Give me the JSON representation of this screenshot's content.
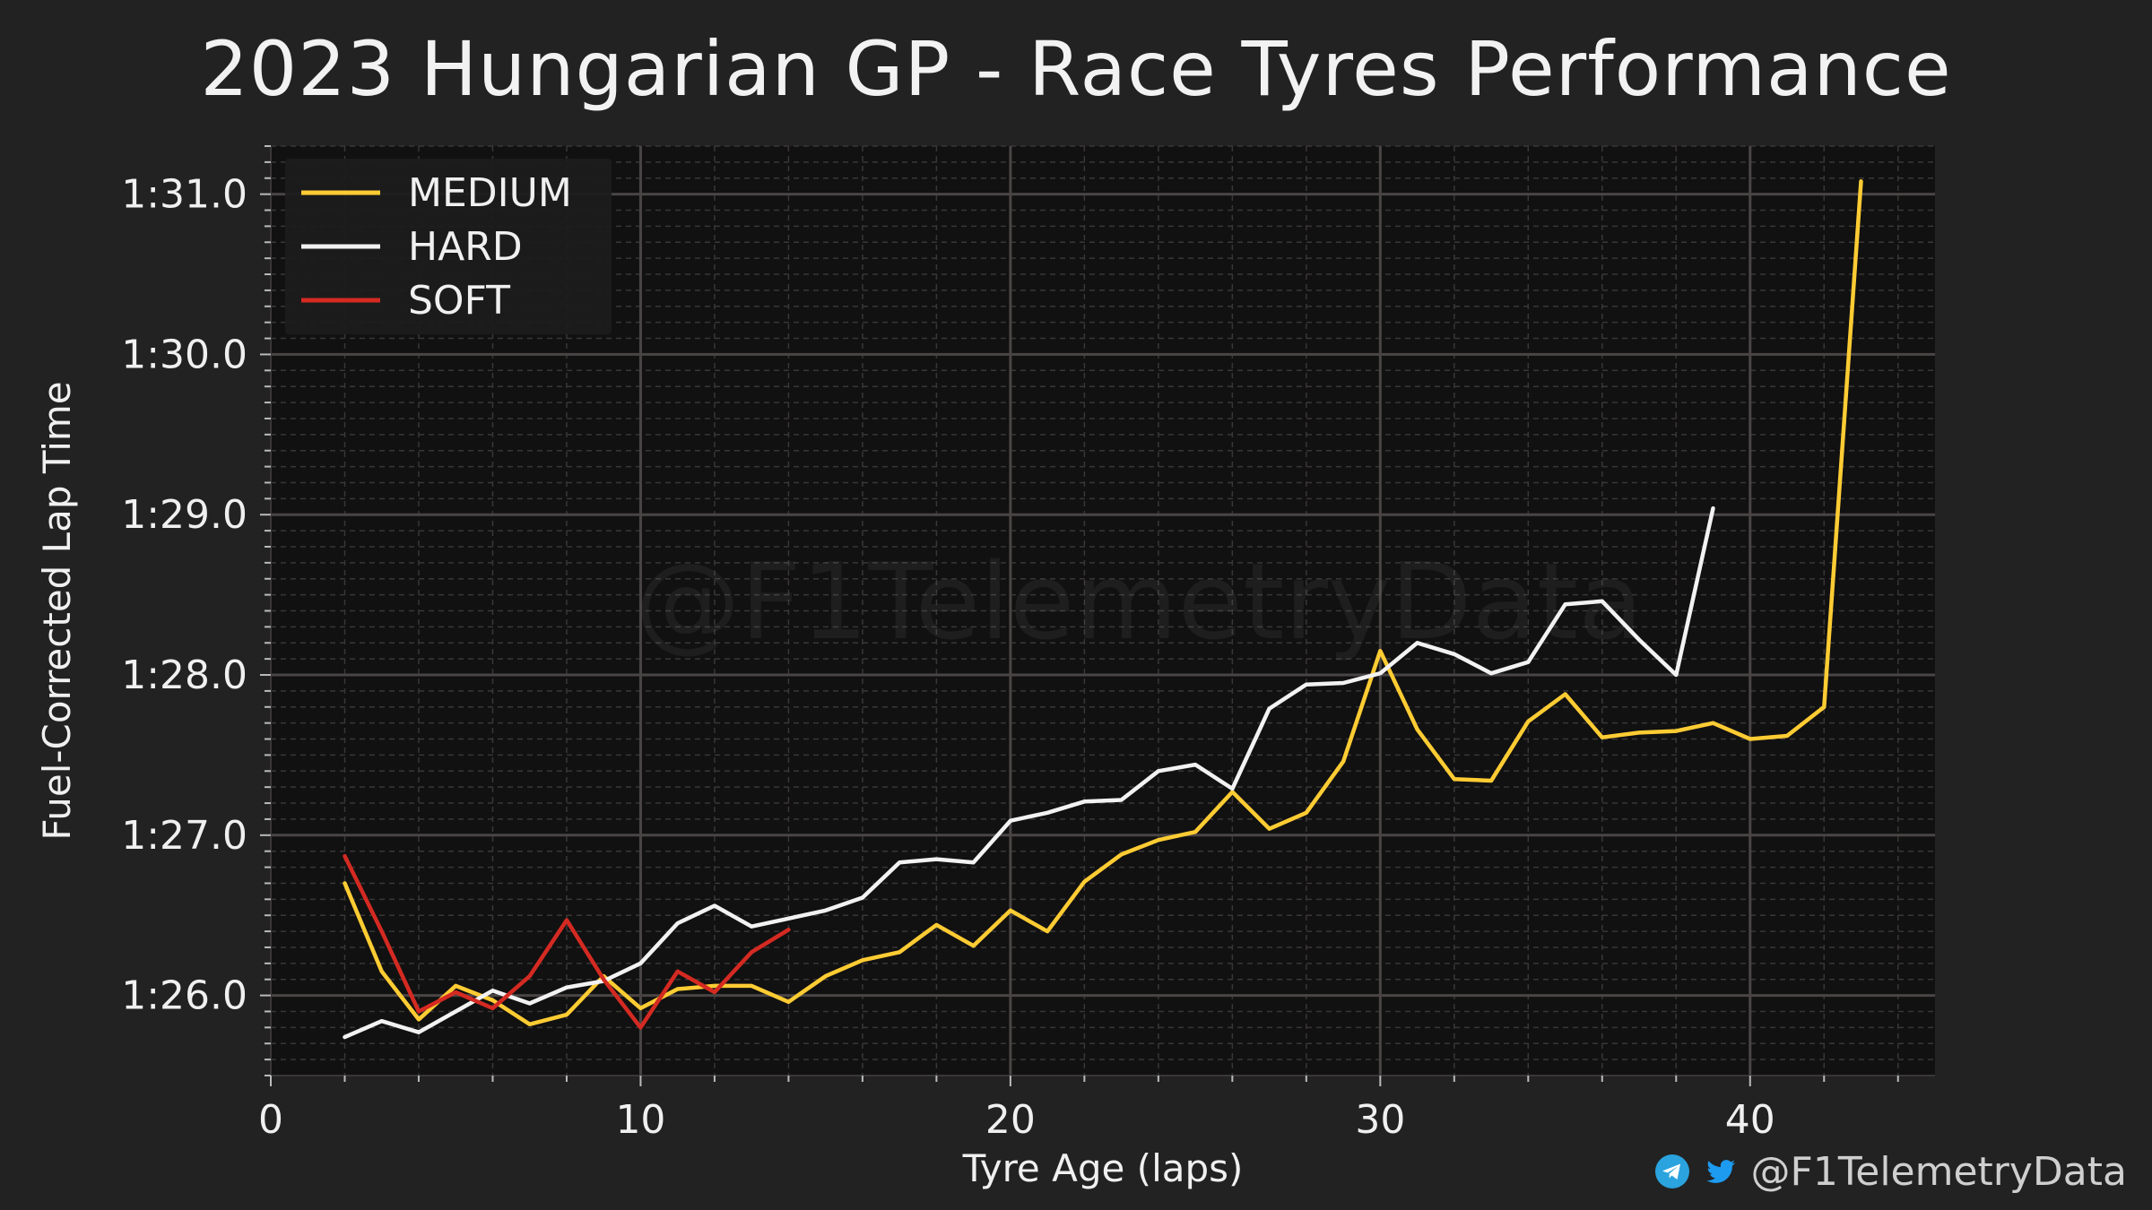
{
  "title": "2023 Hungarian GP - Race Tyres Performance",
  "watermark": "@F1TelemetryData",
  "credit": {
    "handle": "@F1TelemetryData",
    "icons": [
      "telegram-icon",
      "twitter-icon"
    ]
  },
  "colors": {
    "background": "#222222",
    "plot_background": "#111111",
    "grid_major": "#4a4545",
    "grid_minor": "#3a3636",
    "MEDIUM": "#FFCC33",
    "HARD": "#F2F2F2",
    "SOFT": "#D42A22",
    "telegram": "#2AA3DF",
    "twitter": "#1D9BF0"
  },
  "chart_data": {
    "type": "line",
    "title": "2023 Hungarian GP - Race Tyres Performance",
    "xlabel": "Tyre Age (laps)",
    "ylabel": "Fuel-Corrected Lap Time",
    "xlim": [
      0,
      45
    ],
    "ylim": [
      85.5,
      91.3
    ],
    "xticks": [
      0,
      10,
      20,
      30,
      40
    ],
    "yticks": [
      {
        "value": 86,
        "label": "1:26.0"
      },
      {
        "value": 87,
        "label": "1:27.0"
      },
      {
        "value": 88,
        "label": "1:28.0"
      },
      {
        "value": 89,
        "label": "1:29.0"
      },
      {
        "value": 90,
        "label": "1:30.0"
      },
      {
        "value": 91,
        "label": "1:31.0"
      }
    ],
    "grid": true,
    "legend_position": "top-left",
    "series": [
      {
        "name": "MEDIUM",
        "x": [
          2,
          3,
          4,
          5,
          6,
          7,
          8,
          9,
          10,
          11,
          12,
          13,
          14,
          15,
          16,
          17,
          18,
          19,
          20,
          21,
          22,
          23,
          24,
          25,
          26,
          27,
          28,
          29,
          30,
          31,
          32,
          33,
          34,
          35,
          36,
          37,
          38,
          39,
          40,
          41,
          42,
          43
        ],
        "y": [
          86.7,
          86.15,
          85.85,
          86.06,
          85.97,
          85.82,
          85.88,
          86.12,
          85.92,
          86.04,
          86.06,
          86.06,
          85.96,
          86.12,
          86.22,
          86.27,
          86.44,
          86.31,
          86.53,
          86.4,
          86.71,
          86.88,
          86.97,
          87.02,
          87.27,
          87.04,
          87.14,
          87.46,
          88.15,
          87.66,
          87.35,
          87.34,
          87.71,
          87.88,
          87.61,
          87.64,
          87.65,
          87.7,
          87.6,
          87.62,
          87.8,
          91.08
        ]
      },
      {
        "name": "HARD",
        "x": [
          2,
          3,
          4,
          5,
          6,
          7,
          8,
          9,
          10,
          11,
          12,
          13,
          14,
          15,
          16,
          17,
          18,
          19,
          20,
          21,
          22,
          23,
          24,
          25,
          26,
          27,
          28,
          29,
          30,
          31,
          32,
          33,
          34,
          35,
          36,
          37,
          38,
          39
        ],
        "y": [
          85.74,
          85.84,
          85.77,
          85.9,
          86.03,
          85.95,
          86.05,
          86.09,
          86.2,
          86.45,
          86.56,
          86.43,
          86.48,
          86.53,
          86.61,
          86.83,
          86.85,
          86.83,
          87.09,
          87.14,
          87.21,
          87.22,
          87.4,
          87.44,
          87.29,
          87.79,
          87.94,
          87.95,
          88.01,
          88.2,
          88.13,
          88.01,
          88.08,
          88.44,
          88.46,
          88.22,
          88.0,
          89.04
        ]
      },
      {
        "name": "SOFT",
        "x": [
          2,
          3,
          4,
          5,
          6,
          7,
          8,
          9,
          10,
          11,
          12,
          13,
          14
        ],
        "y": [
          86.87,
          86.4,
          85.9,
          86.02,
          85.92,
          86.12,
          86.47,
          86.1,
          85.8,
          86.15,
          86.02,
          86.27,
          86.41
        ]
      }
    ]
  }
}
